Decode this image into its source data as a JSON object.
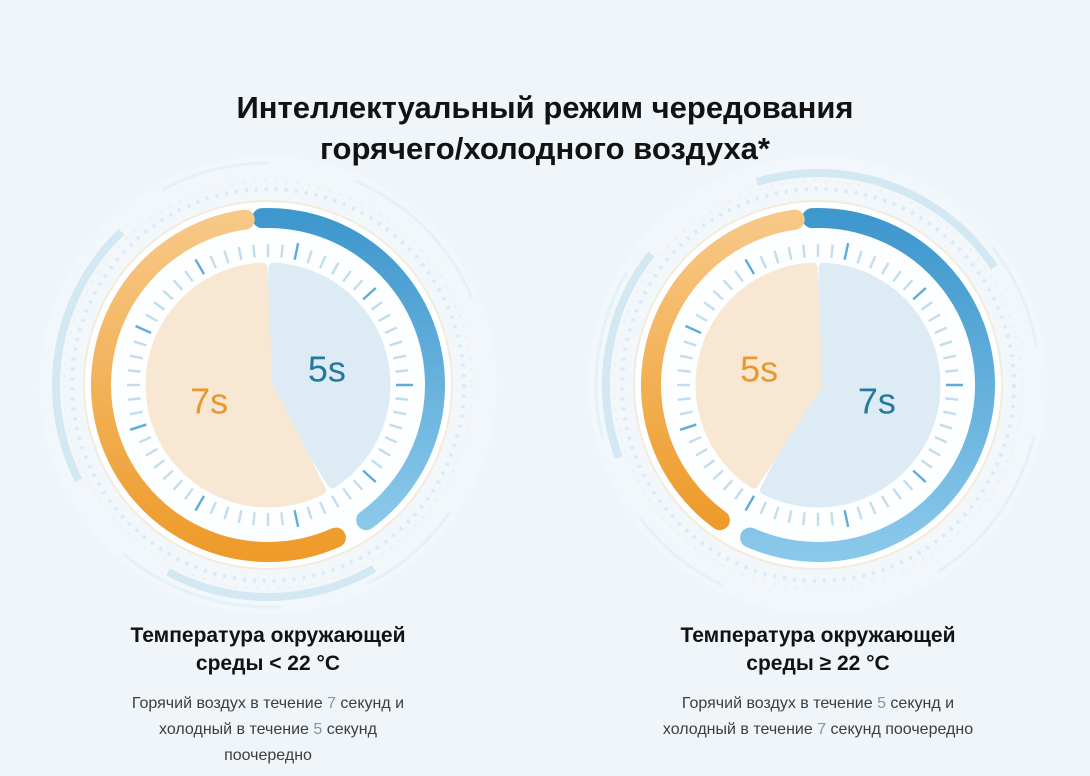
{
  "background": "#f0f5f9",
  "title": {
    "line1": "Интеллектуальный режим чередования",
    "line2": "горячего/холодного воздуха*"
  },
  "chart_data": [
    {
      "type": "pie",
      "title": "Температура окружающей среды < 22 °C",
      "heading_line1": "Температура окружающей",
      "heading_line2": "среды < 22 °C",
      "units": "seconds",
      "total_seconds": 12,
      "clockwise_from_top": "cold",
      "slices": [
        {
          "name": "холодный воздух",
          "label": "5s",
          "value": 5,
          "color_key": "cold"
        },
        {
          "name": "горячий воздух",
          "label": "7s",
          "value": 7,
          "color_key": "hot"
        }
      ],
      "description_lines": [
        [
          {
            "t": "Горячий воздух в течение "
          },
          {
            "t": "7",
            "muted": true
          },
          {
            "t": " секунд и"
          }
        ],
        [
          {
            "t": "холодный в течение "
          },
          {
            "t": "5",
            "muted": true
          },
          {
            "t": " секунд"
          }
        ],
        [
          {
            "t": "поочередно"
          }
        ]
      ]
    },
    {
      "type": "pie",
      "title": "Температура окружающей среды ≥ 22 °C",
      "heading_line1": "Температура окружающей",
      "heading_line2": "среды ≥ 22 °C",
      "units": "seconds",
      "total_seconds": 12,
      "clockwise_from_top": "cold",
      "slices": [
        {
          "name": "холодный воздух",
          "label": "7s",
          "value": 7,
          "color_key": "cold"
        },
        {
          "name": "горячий воздух",
          "label": "5s",
          "value": 5,
          "color_key": "hot"
        }
      ],
      "description_lines": [
        [
          {
            "t": "Горячий воздух в течение "
          },
          {
            "t": "5",
            "muted": true
          },
          {
            "t": " секунд и"
          }
        ],
        [
          {
            "t": "холодный в течение "
          },
          {
            "t": "7",
            "muted": true
          },
          {
            "t": " секунд поочередно"
          }
        ]
      ]
    }
  ],
  "theme": {
    "hot_arc_gradient": [
      "#f7c886",
      "#ee9b2a"
    ],
    "cold_arc_gradient": [
      "#3e97cd",
      "#8ac8ea"
    ],
    "hot_slice_fill": "#f8e7d2",
    "cold_slice_fill": "#ddebf5",
    "hot_label_color": "#e9982f",
    "cold_label_color": "#27789f",
    "tick_color": "#c3ddee",
    "tick_dark_color": "#61abd6",
    "disc_fill": "#fcfeff",
    "decor_peach": "#f3e4cd",
    "decor_blue_light": "#d8e8f2",
    "decor_blue_band": "#cbe3f1"
  }
}
